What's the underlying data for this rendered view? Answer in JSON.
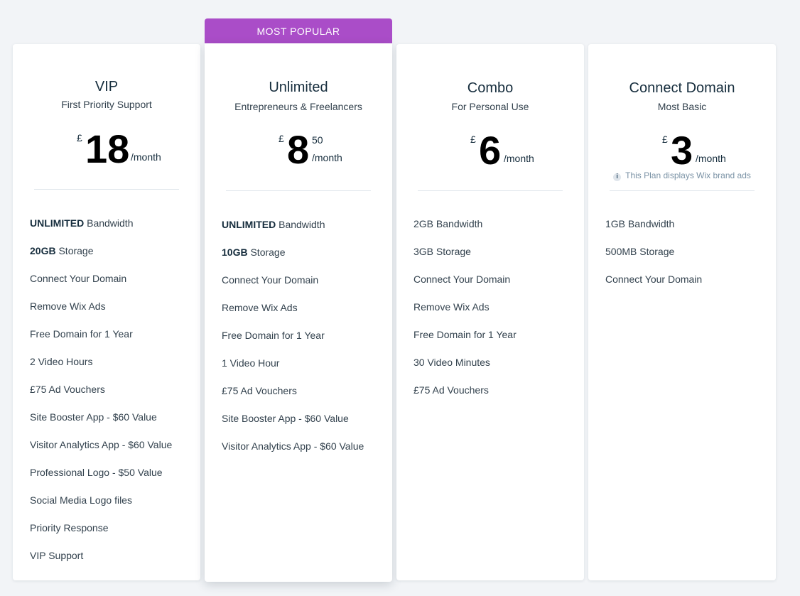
{
  "banner": {
    "label": "MOST POPULAR"
  },
  "plans": [
    {
      "name": "VIP",
      "subtitle": "First Priority Support",
      "currency": "£",
      "amount": "18",
      "cents": "",
      "period": "/month",
      "note": "",
      "features": [
        {
          "bold": "UNLIMITED",
          "text": " Bandwidth"
        },
        {
          "bold": "20GB",
          "text": " Storage"
        },
        {
          "bold": "",
          "text": "Connect Your Domain"
        },
        {
          "bold": "",
          "text": "Remove Wix Ads"
        },
        {
          "bold": "",
          "text": "Free Domain for 1 Year"
        },
        {
          "bold": "",
          "text": "2 Video Hours"
        },
        {
          "bold": "",
          "text": "£75 Ad Vouchers"
        },
        {
          "bold": "",
          "text": "Site Booster App - $60 Value"
        },
        {
          "bold": "",
          "text": "Visitor Analytics App - $60 Value"
        },
        {
          "bold": "",
          "text": "Professional Logo - $50 Value"
        },
        {
          "bold": "",
          "text": "Social Media Logo files"
        },
        {
          "bold": "",
          "text": "Priority Response"
        },
        {
          "bold": "",
          "text": "VIP Support"
        }
      ]
    },
    {
      "name": "Unlimited",
      "subtitle": "Entrepreneurs & Freelancers",
      "currency": "£",
      "amount": "8",
      "cents": "50",
      "period": "/month",
      "note": "",
      "features": [
        {
          "bold": "UNLIMITED",
          "text": " Bandwidth"
        },
        {
          "bold": "10GB",
          "text": " Storage"
        },
        {
          "bold": "",
          "text": "Connect Your Domain"
        },
        {
          "bold": "",
          "text": "Remove Wix Ads"
        },
        {
          "bold": "",
          "text": "Free Domain for 1 Year"
        },
        {
          "bold": "",
          "text": "1 Video Hour"
        },
        {
          "bold": "",
          "text": "£75 Ad Vouchers"
        },
        {
          "bold": "",
          "text": "Site Booster App - $60 Value"
        },
        {
          "bold": "",
          "text": "Visitor Analytics App - $60 Value"
        }
      ]
    },
    {
      "name": "Combo",
      "subtitle": "For Personal Use",
      "currency": "£",
      "amount": "6",
      "cents": "",
      "period": "/month",
      "note": "",
      "features": [
        {
          "bold": "",
          "text": "2GB Bandwidth"
        },
        {
          "bold": "",
          "text": "3GB Storage"
        },
        {
          "bold": "",
          "text": "Connect Your Domain"
        },
        {
          "bold": "",
          "text": "Remove Wix Ads"
        },
        {
          "bold": "",
          "text": "Free Domain for 1 Year"
        },
        {
          "bold": "",
          "text": "30 Video Minutes"
        },
        {
          "bold": "",
          "text": "£75 Ad Vouchers"
        }
      ]
    },
    {
      "name": "Connect Domain",
      "subtitle": "Most Basic",
      "currency": "£",
      "amount": "3",
      "cents": "",
      "period": "/month",
      "note": "This Plan displays Wix brand ads",
      "features": [
        {
          "bold": "",
          "text": "1GB Bandwidth"
        },
        {
          "bold": "",
          "text": "500MB Storage"
        },
        {
          "bold": "",
          "text": "Connect Your Domain"
        }
      ]
    }
  ]
}
